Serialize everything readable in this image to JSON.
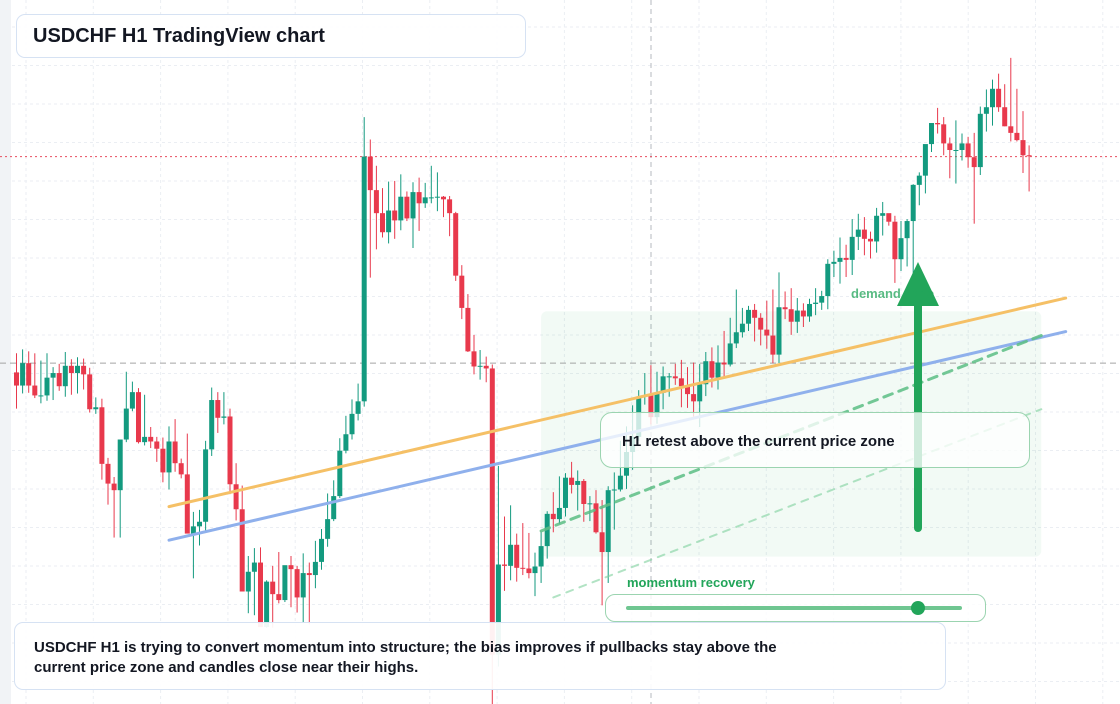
{
  "title": "USDCHF H1 TradingView chart",
  "note": "USDCHF H1 is trying to convert momentum into structure; the bias improves if pullbacks stay above the current price zone and candles close near their highs.",
  "callout": "H1 retest above the current price zone",
  "momentum": {
    "label": "momentum recovery",
    "level": 0.87
  },
  "zone_label": "demand zone",
  "colors": {
    "up": "#139a7f",
    "down": "#e8394c",
    "trend_orange": "#f5c066",
    "trend_blue": "#8fb0ec",
    "accent_green": "#22a55a"
  },
  "chart_data": {
    "type": "candlestick",
    "symbol": "USDCHF",
    "timeframe": "H1",
    "grid": true,
    "price_axis": {
      "min": 0,
      "max": 100
    },
    "hlines": [
      {
        "name": "dotted red level",
        "y": 83.5,
        "style": "dotted",
        "color": "#e8394c"
      },
      {
        "name": "dashed grey level",
        "y": 52.1,
        "style": "dashed",
        "color": "#9a9a9a"
      }
    ],
    "trendlines": [
      {
        "name": "orange trendline",
        "color": "#f5c066",
        "from": [
          25,
          30.3
        ],
        "to": [
          172,
          62.0
        ]
      },
      {
        "name": "blue trendline",
        "color": "#8fb0ec",
        "from": [
          25,
          25.2
        ],
        "to": [
          172,
          56.9
        ]
      },
      {
        "name": "green dashed trendline",
        "color": "#5cbf85",
        "from": [
          86,
          26.6
        ],
        "to": [
          168,
          56.3
        ]
      },
      {
        "name": "green faint trendline",
        "color": "#7fd19e",
        "from": [
          88,
          16.5
        ],
        "to": [
          168,
          45.1
        ]
      }
    ],
    "zone": {
      "name": "demand zone",
      "x": [
        86,
        168
      ],
      "y": [
        22.7,
        60.0
      ]
    },
    "candles": {
      "o": [
        50.7,
        48.7,
        52.1,
        48.7,
        47.2,
        47.2,
        49.9,
        50.6,
        48.6,
        51.7,
        50.6,
        51.7,
        50.4,
        45.1,
        45.4,
        36.8,
        33.8,
        32.8,
        40.5,
        45.2,
        47.7,
        40.1,
        40.9,
        40.2,
        39.1,
        35.5,
        40.2,
        36.9,
        35.2,
        26.2,
        27.3,
        28.0,
        39.0,
        46.5,
        43.8,
        44.0,
        33.7,
        29.9,
        17.4,
        20.4,
        21.8,
        12.0,
        18.9,
        17.0,
        16.1,
        21.4,
        20.8,
        16.5,
        20.2,
        19.9,
        21.9,
        25.4,
        28.4,
        31.9,
        38.8,
        41.3,
        44.4,
        46.3,
        83.5,
        78.4,
        74.9,
        72.0,
        75.3,
        73.8,
        77.4,
        74.1,
        78.1,
        76.4,
        77.3,
        77.3,
        77.4,
        77.0,
        74.9,
        65.4,
        60.5,
        53.9,
        51.6,
        51.7,
        51.3,
        7.8,
        21.5,
        21.3,
        24.5,
        21.0,
        20.9,
        20.2,
        21.2,
        24.3,
        29.2,
        28.4,
        30.1,
        34.7,
        33.6,
        34.2,
        30.7,
        30.8,
        26.4,
        23.4,
        32.8,
        32.9,
        35.0,
        38.6,
        40.9,
        47.0,
        47.2,
        43.9,
        47.6,
        50.1,
        50.1,
        49.8,
        48.6,
        47.4,
        46.3,
        48.9,
        52.4,
        49.9,
        52.2,
        51.9,
        55.1,
        56.8,
        58.1,
        60.2,
        59.0,
        57.2,
        56.3,
        53.4,
        60.6,
        60.3,
        58.4,
        60.1,
        59.2,
        61.1,
        61.3,
        62.3,
        67.2,
        67.5,
        68.1,
        67.8,
        71.3,
        72.4,
        71.0,
        70.6,
        74.5,
        74.9,
        73.6,
        67.9,
        71.1,
        73.7,
        79.2,
        80.6,
        85.4,
        88.6,
        88.4,
        85.5,
        84.5,
        84.5,
        85.5,
        83.4,
        81.9,
        90.0,
        91.0,
        93.8,
        91.0,
        88.1,
        87.1,
        86.0,
        83.7
      ],
      "h": [
        53.6,
        54.2,
        53.9,
        53.6,
        52.5,
        53.6,
        51.5,
        52.0,
        53.8,
        52.7,
        53.0,
        52.8,
        51.4,
        46.9,
        46.7,
        37.7,
        34.8,
        39.9,
        50.8,
        49.3,
        48.3,
        47.3,
        42.4,
        40.9,
        40.8,
        42.5,
        43.6,
        37.6,
        41.4,
        29.5,
        29.8,
        40.3,
        48.4,
        47.7,
        47.7,
        45.2,
        36.9,
        33.5,
        22.8,
        24.0,
        24.1,
        19.1,
        21.3,
        23.4,
        19.9,
        22.8,
        21.3,
        23.2,
        21.8,
        25.1,
        26.9,
        32.3,
        34.3,
        40.7,
        44.1,
        46.6,
        49.0,
        89.5,
        86.1,
        82.1,
        78.7,
        79.7,
        79.8,
        80.8,
        78.2,
        79.6,
        80.3,
        79.5,
        82.1,
        81.1,
        77.5,
        77.5,
        75.1,
        67.0,
        62.6,
        56.4,
        54.1,
        53.1,
        51.9,
        36.5,
        28.8,
        30.5,
        26.2,
        27.8,
        26.3,
        23.3,
        26.5,
        29.6,
        32.5,
        34.9,
        35.4,
        37.1,
        35.8,
        34.5,
        31.9,
        32.8,
        31.3,
        33.4,
        35.5,
        40.3,
        42.5,
        45.7,
        48.0,
        50.6,
        51.8,
        50.8,
        51.6,
        50.6,
        52.0,
        52.6,
        51.5,
        52.2,
        52.0,
        53.8,
        54.5,
        54.8,
        57.0,
        59.0,
        63.3,
        60.5,
        60.8,
        61.1,
        59.7,
        61.6,
        63.3,
        65.9,
        63.0,
        63.5,
        62.0,
        61.2,
        61.9,
        63.5,
        63.1,
        67.9,
        69.2,
        71.2,
        70.1,
        74.0,
        74.8,
        74.3,
        72.1,
        75.7,
        76.6,
        74.6,
        74.5,
        73.7,
        74.0,
        79.3,
        81.1,
        82.5,
        88.5,
        90.9,
        89.5,
        86.4,
        89.0,
        87.0,
        86.5,
        87.1,
        91.1,
        93.7,
        95.2,
        96.1,
        94.5,
        98.5,
        93.8,
        90.4,
        85.2
      ],
      "l": [
        45.2,
        47.5,
        47.6,
        46.8,
        46.0,
        46.4,
        46.5,
        47.9,
        47.0,
        47.3,
        47.5,
        48.1,
        44.6,
        44.4,
        34.4,
        30.6,
        25.6,
        25.6,
        40.1,
        44.8,
        39.9,
        39.6,
        39.2,
        37.1,
        34.0,
        32.9,
        35.6,
        34.6,
        28.4,
        19.4,
        24.4,
        26.6,
        38.0,
        41.5,
        42.8,
        32.2,
        28.2,
        20.7,
        14.1,
        13.8,
        17.6,
        11.9,
        11.9,
        15.6,
        15.8,
        15.0,
        14.2,
        12.7,
        12.4,
        17.9,
        20.7,
        24.2,
        28.1,
        31.6,
        38.4,
        40.5,
        43.4,
        45.5,
        65.1,
        69.4,
        71.2,
        70.3,
        71.0,
        72.3,
        73.7,
        69.6,
        72.2,
        75.7,
        76.4,
        75.2,
        74.3,
        71.4,
        64.6,
        58.8,
        53.8,
        50.4,
        49.6,
        49.2,
        0.1,
        6.0,
        17.5,
        19.1,
        18.9,
        19.9,
        19.4,
        16.7,
        18.7,
        22.4,
        26.4,
        27.7,
        28.8,
        32.3,
        29.7,
        28.0,
        28.1,
        26.2,
        15.3,
        18.7,
        26.8,
        32.6,
        33.0,
        35.9,
        40.3,
        45.8,
        42.8,
        42.9,
        45.1,
        47.0,
        48.8,
        45.4,
        45.3,
        44.0,
        42.4,
        47.1,
        48.4,
        48.1,
        49.8,
        51.6,
        54.4,
        56.0,
        57.0,
        55.4,
        54.8,
        54.3,
        52.1,
        52.1,
        58.8,
        56.4,
        56.7,
        57.6,
        58.4,
        59.4,
        60.2,
        60.3,
        65.2,
        64.2,
        65.2,
        65.5,
        69.3,
        68.5,
        68.0,
        68.9,
        71.5,
        73.0,
        64.3,
        66.1,
        66.8,
        63.7,
        76.1,
        77.9,
        84.2,
        87.0,
        83.7,
        80.2,
        79.4,
        82.9,
        81.8,
        73.3,
        80.7,
        87.3,
        88.2,
        90.3,
        88.1,
        85.8,
        85.8,
        81.0,
        78.2
      ],
      "c": [
        48.7,
        52.1,
        48.7,
        47.2,
        47.2,
        49.9,
        50.6,
        48.6,
        51.7,
        50.6,
        51.7,
        50.4,
        45.1,
        45.4,
        36.8,
        33.8,
        32.8,
        40.5,
        45.2,
        47.7,
        40.1,
        40.9,
        40.2,
        39.1,
        35.5,
        40.2,
        36.9,
        35.2,
        26.2,
        27.3,
        28.0,
        39.0,
        46.5,
        43.8,
        44.0,
        33.7,
        29.9,
        17.4,
        20.4,
        21.8,
        12.0,
        18.9,
        17.0,
        16.1,
        21.4,
        20.8,
        16.5,
        20.2,
        19.9,
        21.9,
        25.4,
        28.4,
        31.9,
        38.8,
        41.3,
        44.4,
        46.3,
        83.5,
        78.4,
        74.9,
        72.0,
        75.3,
        73.8,
        77.4,
        74.1,
        78.1,
        76.4,
        77.3,
        77.3,
        77.4,
        77.0,
        74.9,
        65.4,
        60.5,
        53.9,
        51.6,
        51.7,
        51.3,
        7.8,
        21.5,
        21.3,
        24.5,
        21.0,
        20.9,
        20.2,
        21.2,
        24.3,
        29.2,
        28.4,
        30.1,
        34.7,
        33.6,
        34.2,
        30.7,
        30.8,
        26.4,
        23.4,
        32.8,
        32.9,
        35.0,
        38.6,
        40.9,
        47.0,
        47.2,
        43.9,
        47.6,
        50.1,
        50.1,
        49.8,
        48.6,
        47.4,
        46.3,
        48.9,
        52.4,
        49.9,
        52.2,
        51.9,
        55.1,
        56.8,
        58.1,
        60.2,
        59.0,
        57.2,
        56.3,
        53.4,
        60.6,
        60.3,
        58.4,
        60.1,
        59.2,
        61.1,
        61.3,
        62.3,
        67.2,
        67.5,
        68.1,
        67.8,
        71.3,
        72.4,
        71.0,
        70.6,
        74.5,
        74.9,
        73.6,
        67.9,
        71.1,
        73.7,
        79.2,
        80.6,
        85.4,
        88.6,
        88.4,
        85.5,
        84.5,
        84.5,
        85.5,
        83.4,
        81.9,
        90.0,
        91.0,
        93.8,
        91.0,
        88.1,
        87.1,
        86.0,
        83.7,
        83.6
      ]
    }
  }
}
